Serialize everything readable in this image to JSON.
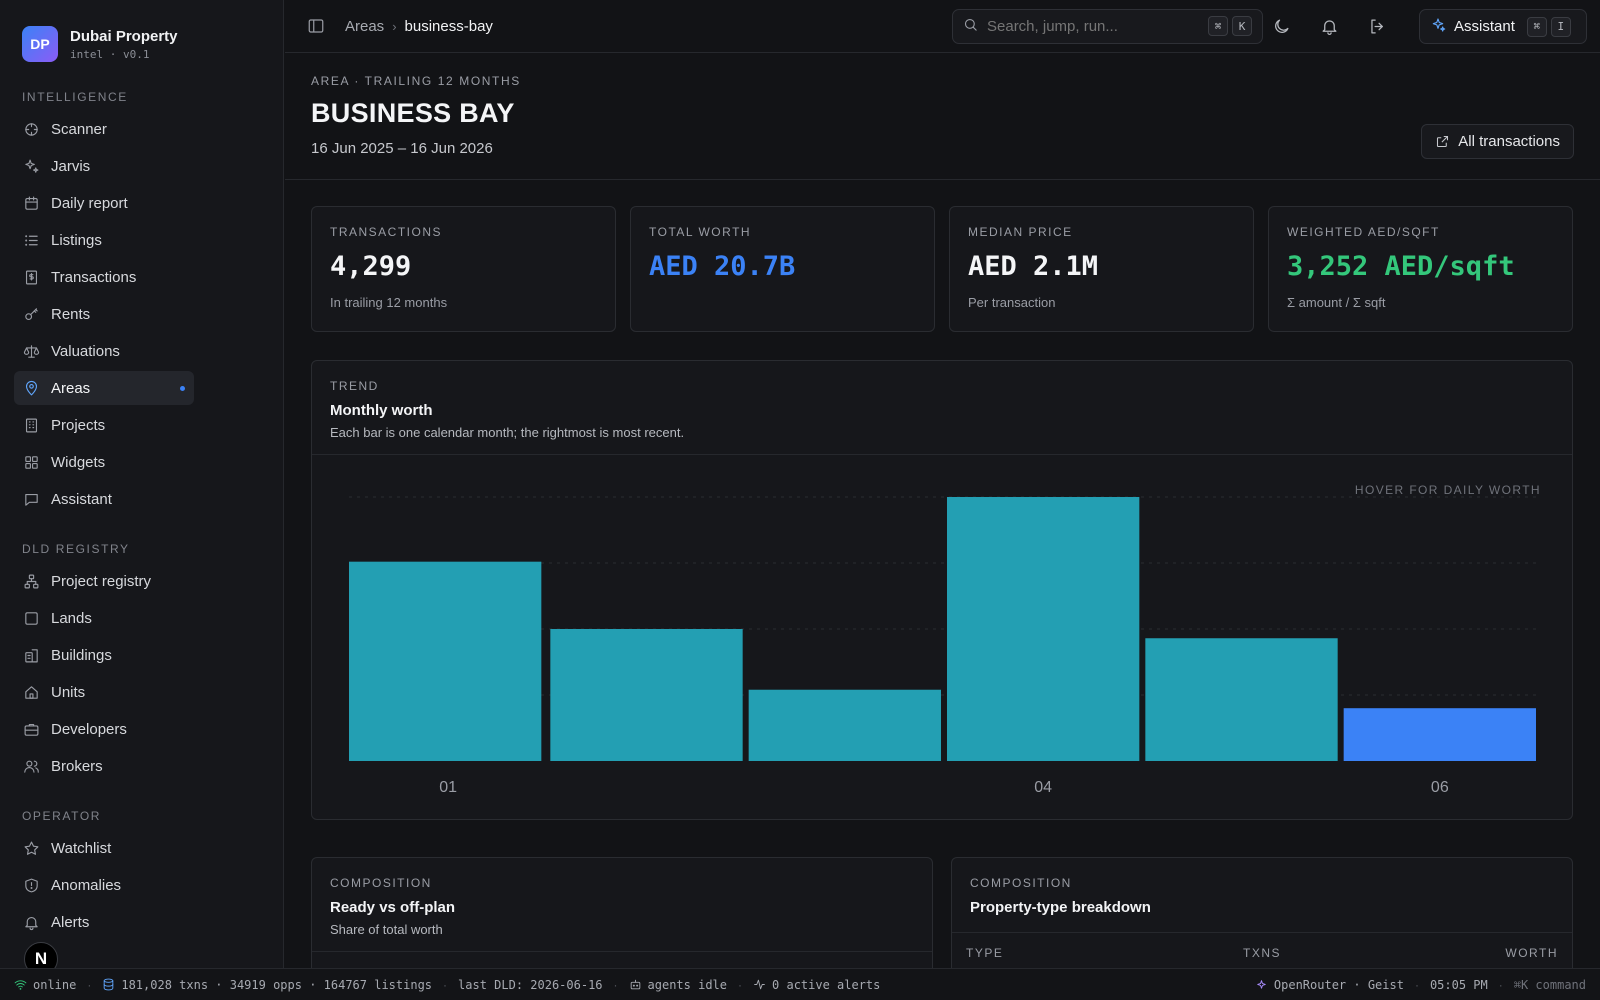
{
  "brand": {
    "initials": "DP",
    "name": "Dubai Property",
    "version": "intel · v0.1"
  },
  "sidebar": {
    "sections": [
      {
        "label": "INTELLIGENCE",
        "items": [
          {
            "label": "Scanner",
            "icon": "scanner-icon"
          },
          {
            "label": "Jarvis",
            "icon": "sparkles-icon"
          },
          {
            "label": "Daily report",
            "icon": "calendar-icon"
          },
          {
            "label": "Listings",
            "icon": "list-icon"
          },
          {
            "label": "Transactions",
            "icon": "receipt-icon"
          },
          {
            "label": "Rents",
            "icon": "key-icon"
          },
          {
            "label": "Valuations",
            "icon": "scale-icon"
          },
          {
            "label": "Areas",
            "icon": "map-pin-icon",
            "active": true
          },
          {
            "label": "Projects",
            "icon": "building-icon"
          },
          {
            "label": "Widgets",
            "icon": "grid-icon"
          },
          {
            "label": "Assistant",
            "icon": "chat-icon"
          }
        ]
      },
      {
        "label": "DLD REGISTRY",
        "items": [
          {
            "label": "Project registry",
            "icon": "network-icon"
          },
          {
            "label": "Lands",
            "icon": "square-icon"
          },
          {
            "label": "Buildings",
            "icon": "buildings-icon"
          },
          {
            "label": "Units",
            "icon": "home-icon"
          },
          {
            "label": "Developers",
            "icon": "briefcase-icon"
          },
          {
            "label": "Brokers",
            "icon": "users-icon"
          }
        ]
      },
      {
        "label": "OPERATOR",
        "items": [
          {
            "label": "Watchlist",
            "icon": "star-icon"
          },
          {
            "label": "Anomalies",
            "icon": "shield-icon"
          },
          {
            "label": "Alerts",
            "icon": "bell-icon"
          }
        ]
      }
    ],
    "badge": "N"
  },
  "topbar": {
    "breadcrumb": [
      "Areas",
      "business-bay"
    ],
    "search_placeholder": "Search, jump, run...",
    "search_keys": [
      "⌘",
      "K"
    ],
    "assistant_label": "Assistant",
    "assistant_keys": [
      "⌘",
      "I"
    ]
  },
  "header": {
    "eyebrow": "AREA · TRAILING 12 MONTHS",
    "title": "BUSINESS BAY",
    "date_range": "16 Jun 2025 – 16 Jun 2026",
    "all_transactions_label": "All transactions"
  },
  "kpis": [
    {
      "label": "TRANSACTIONS",
      "value": "4,299",
      "sub": "In trailing 12 months",
      "color": "#f4f5f7"
    },
    {
      "label": "TOTAL WORTH",
      "value": "AED 20.7B",
      "sub": "",
      "color": "#3b82f6"
    },
    {
      "label": "MEDIAN PRICE",
      "value": "AED 2.1M",
      "sub": "Per transaction",
      "color": "#f4f5f7"
    },
    {
      "label": "WEIGHTED AED/SQFT",
      "value": "3,252 AED/sqft",
      "sub": "Σ amount / Σ sqft",
      "color": "#34c77b"
    }
  ],
  "trend": {
    "eyebrow": "TREND",
    "title": "Monthly worth",
    "description": "Each bar is one calendar month; the rightmost is most recent.",
    "hover_hint": "HOVER FOR DAILY WORTH"
  },
  "chart_data": {
    "type": "bar",
    "categories": [
      "01",
      "02",
      "03",
      "04",
      "05",
      "06"
    ],
    "tick_labels": [
      "01",
      "",
      "",
      "04",
      "",
      "06"
    ],
    "values": [
      75.5,
      50,
      27,
      100,
      46.5,
      20
    ],
    "ylim": [
      0,
      100
    ],
    "grid": true,
    "bar_color": "#239fb3",
    "highlight_color": "#3b82f6",
    "highlight_index": 5
  },
  "composition": [
    {
      "eyebrow": "COMPOSITION",
      "title": "Ready vs off-plan",
      "description": "Share of total worth"
    },
    {
      "eyebrow": "COMPOSITION",
      "title": "Property-type breakdown",
      "columns": [
        "TYPE",
        "TXNS",
        "WORTH"
      ]
    }
  ],
  "statusbar": {
    "online": "online",
    "counts": "181,028 txns · 34919 opps · 164767 listings",
    "last_dld": "last DLD: 2026-06-16",
    "agents": "agents idle",
    "alerts": "0 active alerts",
    "model": "OpenRouter · Geist",
    "time": "05:05 PM",
    "command_hint": "⌘K command"
  }
}
